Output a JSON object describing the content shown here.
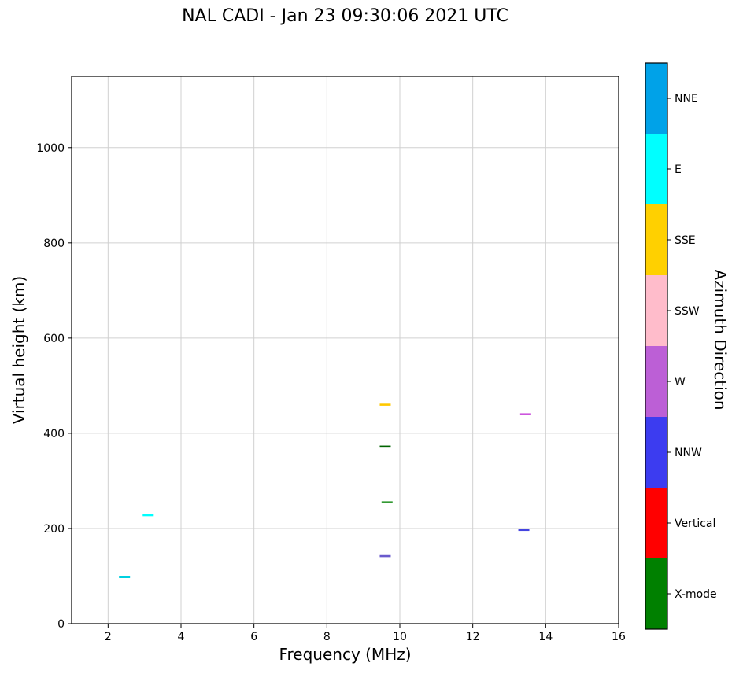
{
  "chart_data": {
    "type": "scatter",
    "title": "NAL CADI - Jan 23 09:30:06 2021 UTC",
    "xlabel": "Frequency (MHz)",
    "ylabel": "Virtual height (km)",
    "xlim": [
      1,
      16
    ],
    "ylim": [
      0,
      1150
    ],
    "xticks": [
      2,
      4,
      6,
      8,
      10,
      12,
      14,
      16
    ],
    "yticks": [
      0,
      200,
      400,
      600,
      800,
      1000
    ],
    "grid": true,
    "grid_color": "#d0d0d0",
    "marker": "horizontal-dash",
    "points": [
      {
        "x": 2.45,
        "y": 98,
        "direction": "E",
        "color": "#00d0e0"
      },
      {
        "x": 3.1,
        "y": 228,
        "direction": "E",
        "color": "#00ffff"
      },
      {
        "x": 9.6,
        "y": 460,
        "direction": "SSE",
        "color": "#ffc800"
      },
      {
        "x": 9.6,
        "y": 372,
        "direction": "X-mode",
        "color": "#006400"
      },
      {
        "x": 9.65,
        "y": 255,
        "direction": "X-mode",
        "color": "#339933"
      },
      {
        "x": 9.6,
        "y": 142,
        "direction": "NNW",
        "color": "#6a5acd"
      },
      {
        "x": 13.45,
        "y": 440,
        "direction": "W",
        "color": "#cc55dd"
      },
      {
        "x": 13.4,
        "y": 197,
        "direction": "NNW",
        "color": "#4444e0"
      }
    ],
    "colorbar": {
      "label": "Azimuth Direction",
      "entries": [
        {
          "label": "NNE",
          "color": "#00a2e8"
        },
        {
          "label": "E",
          "color": "#00ffff"
        },
        {
          "label": "SSE",
          "color": "#ffd000"
        },
        {
          "label": "SSW",
          "color": "#ffbccb"
        },
        {
          "label": "W",
          "color": "#bc5fd6"
        },
        {
          "label": "NNW",
          "color": "#3c3cf0"
        },
        {
          "label": "Vertical",
          "color": "#ff0000"
        },
        {
          "label": "X-mode",
          "color": "#008000"
        }
      ]
    }
  }
}
